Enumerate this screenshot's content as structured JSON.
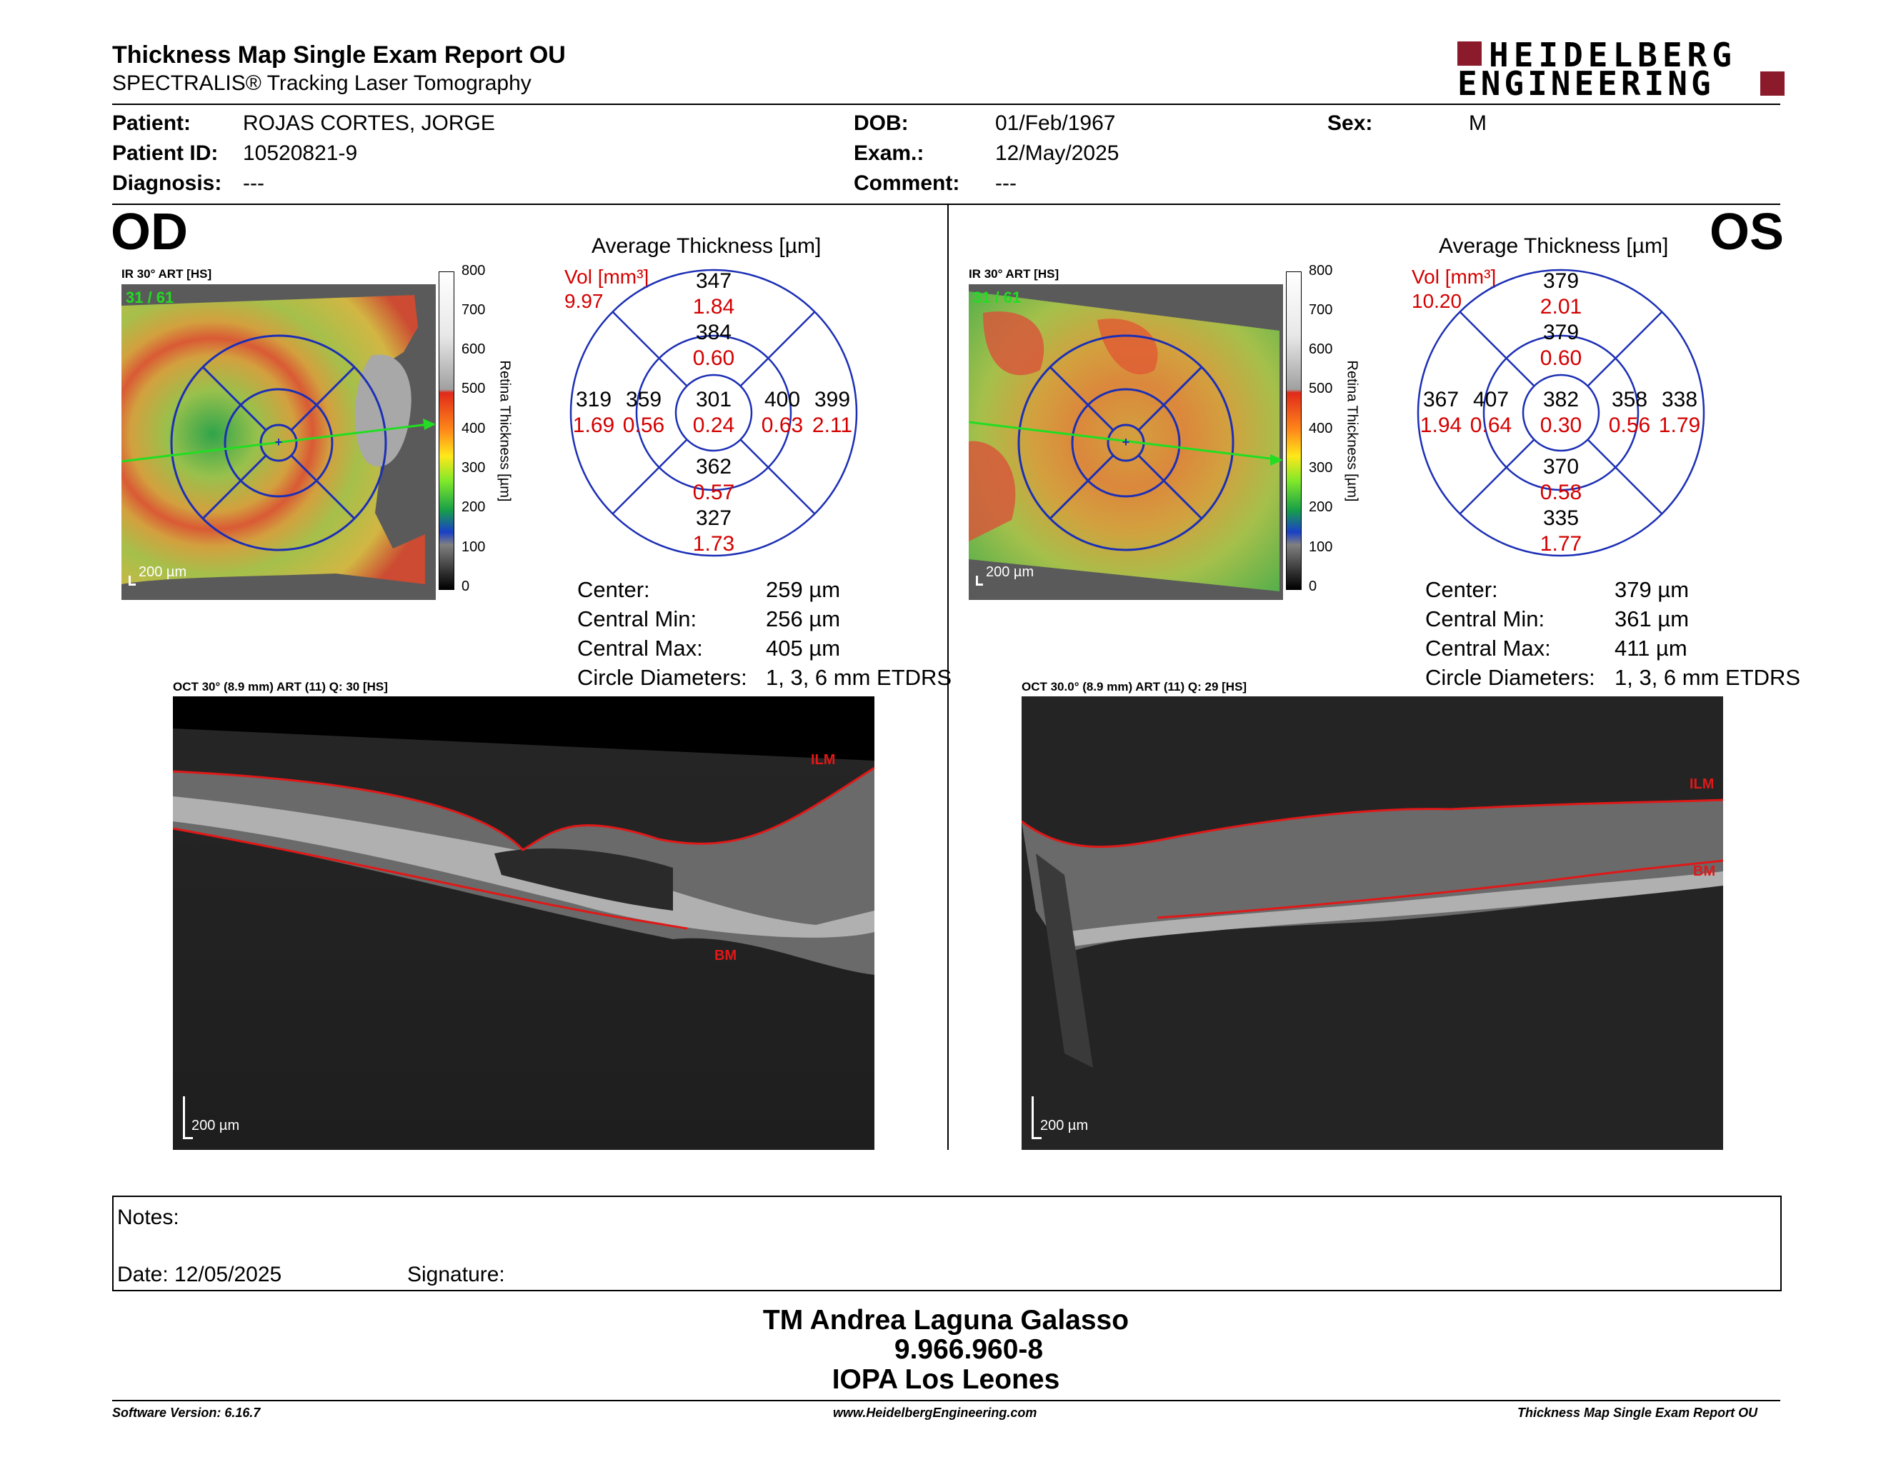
{
  "header": {
    "title": "Thickness Map Single Exam Report OU",
    "subtitle": "SPECTRALIS® Tracking Laser Tomography",
    "logo_line1": "HEIDELBERG",
    "logo_line2": "ENGINEERING",
    "brand_color": "#8b1a2b"
  },
  "patient": {
    "patient_label": "Patient:",
    "patient_value": "ROJAS CORTES, JORGE",
    "id_label": "Patient ID:",
    "id_value": "10520821-9",
    "diagnosis_label": "Diagnosis:",
    "diagnosis_value": "---",
    "dob_label": "DOB:",
    "dob_value": "01/Feb/1967",
    "exam_label": "Exam.:",
    "exam_value": "12/May/2025",
    "comment_label": "Comment:",
    "comment_value": "---",
    "sex_label": "Sex:",
    "sex_value": "M"
  },
  "od": {
    "eye": "OD",
    "ir_label": "IR 30° ART [HS]",
    "frames": "31 / 61",
    "scale": "200 µm",
    "colorbar_title": "Retina  Thickness [µm]",
    "colorbar_ticks": [
      "800",
      "700",
      "600",
      "500",
      "400",
      "300",
      "200",
      "100",
      "0"
    ],
    "avg_title": "Average Thickness [µm]",
    "vol_label": "Vol [mm³]",
    "vol_value": "9.97",
    "etdrs": {
      "center": {
        "t": "301",
        "v": "0.24"
      },
      "inner_top": {
        "t": "384",
        "v": "0.60"
      },
      "outer_top": {
        "t": "347",
        "v": "1.84"
      },
      "inner_left": {
        "t": "359",
        "v": "0.56"
      },
      "outer_left": {
        "t": "319",
        "v": "1.69"
      },
      "inner_right": {
        "t": "400",
        "v": "0.63"
      },
      "outer_right": {
        "t": "399",
        "v": "2.11"
      },
      "inner_bottom": {
        "t": "362",
        "v": "0.57"
      },
      "outer_bottom": {
        "t": "327",
        "v": "1.73"
      }
    },
    "stats": [
      {
        "label": "Center:",
        "value": "259 µm"
      },
      {
        "label": "Central Min:",
        "value": "256 µm"
      },
      {
        "label": "Central Max:",
        "value": "405 µm"
      },
      {
        "label": "Circle Diameters:",
        "value": "1, 3, 6 mm ETDRS"
      }
    ],
    "oct_label": "OCT 30° (8.9 mm) ART (11) Q: 30 [HS]",
    "ilm": "ILM",
    "bm": "BM",
    "oct_scale": "200 µm"
  },
  "os": {
    "eye": "OS",
    "ir_label": "IR 30° ART [HS]",
    "frames": "31 / 61",
    "scale": "200 µm",
    "colorbar_title": "Retina  Thickness [µm]",
    "colorbar_ticks": [
      "800",
      "700",
      "600",
      "500",
      "400",
      "300",
      "200",
      "100",
      "0"
    ],
    "avg_title": "Average Thickness [µm]",
    "vol_label": "Vol [mm³]",
    "vol_value": "10.20",
    "etdrs": {
      "center": {
        "t": "382",
        "v": "0.30"
      },
      "inner_top": {
        "t": "379",
        "v": "0.60"
      },
      "outer_top": {
        "t": "379",
        "v": "2.01"
      },
      "inner_left": {
        "t": "407",
        "v": "0.64"
      },
      "outer_left": {
        "t": "367",
        "v": "1.94"
      },
      "inner_right": {
        "t": "358",
        "v": "0.56"
      },
      "outer_right": {
        "t": "338",
        "v": "1.79"
      },
      "inner_bottom": {
        "t": "370",
        "v": "0.58"
      },
      "outer_bottom": {
        "t": "335",
        "v": "1.77"
      }
    },
    "stats": [
      {
        "label": "Center:",
        "value": "379 µm"
      },
      {
        "label": "Central Min:",
        "value": "361 µm"
      },
      {
        "label": "Central Max:",
        "value": "411 µm"
      },
      {
        "label": "Circle Diameters:",
        "value": "1, 3, 6 mm ETDRS"
      }
    ],
    "oct_label": "OCT 30.0° (8.9 mm) ART (11) Q: 29 [HS]",
    "ilm": "ILM",
    "bm": "BM",
    "oct_scale": "200 µm"
  },
  "notes": {
    "notes_label": "Notes:",
    "date_label": "Date: 12/05/2025",
    "signature_label": "Signature:"
  },
  "signature": {
    "line1": "TM Andrea Laguna Galasso",
    "line2": "9.966.960-8",
    "line3": "IOPA Los Leones"
  },
  "footer": {
    "version": "Software Version: 6.16.7",
    "website": "www.HeidelbergEngineering.com",
    "report": "Thickness Map Single Exam Report OU"
  }
}
